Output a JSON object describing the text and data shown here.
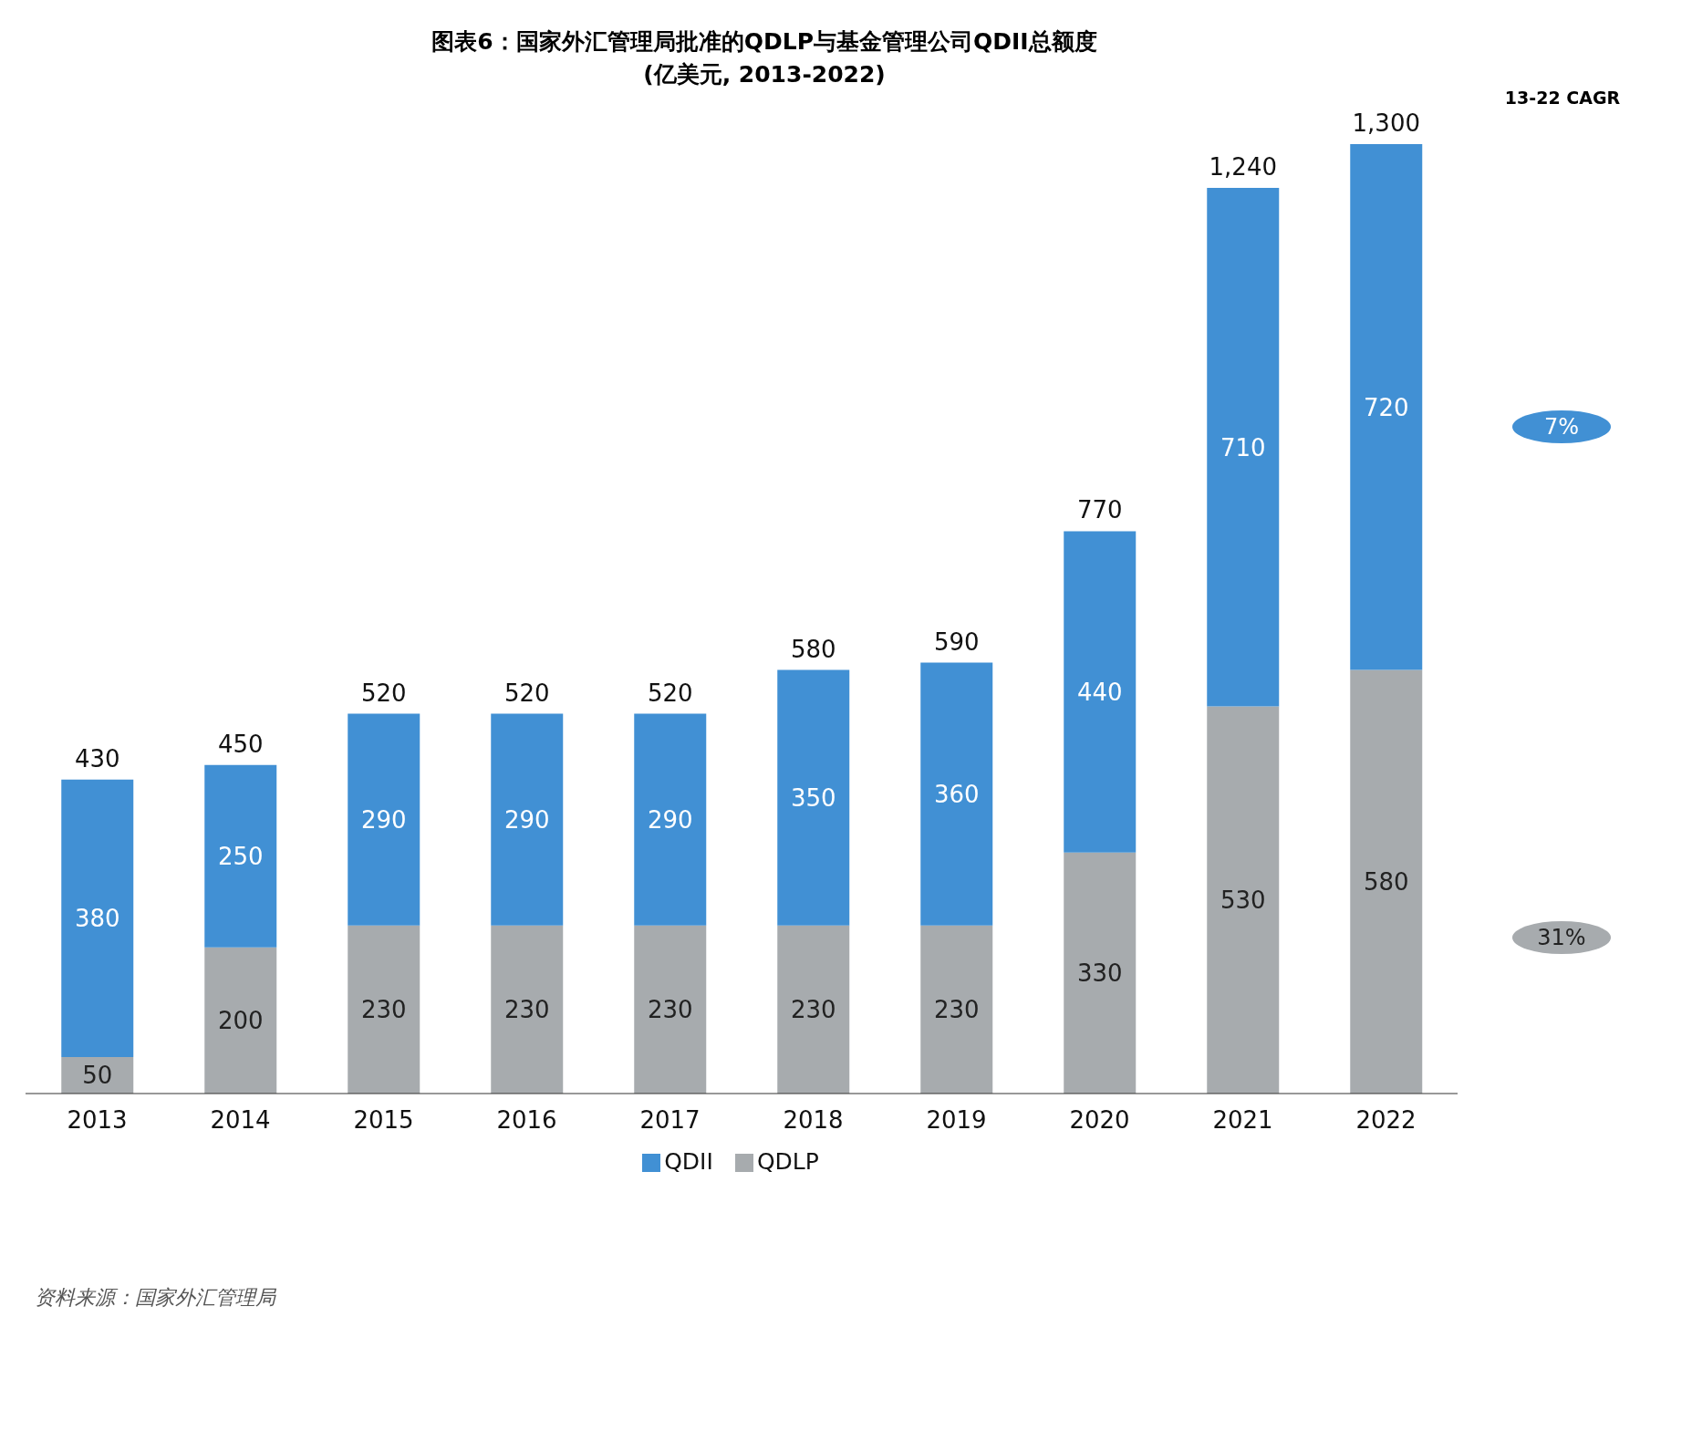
{
  "chart_data": {
    "type": "bar",
    "title": "图表6：国家外汇管理局批准的QDLP与基金管理公司QDII总额度",
    "subtitle": "(亿美元, 2013-2022)",
    "categories": [
      "2013",
      "2014",
      "2015",
      "2016",
      "2017",
      "2018",
      "2019",
      "2020",
      "2021",
      "2022"
    ],
    "stacked": true,
    "series": [
      {
        "name": "QDLP",
        "color": "#a7abae",
        "values": [
          50,
          200,
          230,
          230,
          230,
          230,
          230,
          330,
          530,
          580
        ]
      },
      {
        "name": "QDII",
        "color": "#4190d4",
        "values": [
          380,
          250,
          290,
          290,
          290,
          350,
          360,
          440,
          710,
          720
        ]
      }
    ],
    "totals": [
      "430",
      "450",
      "520",
      "520",
      "520",
      "580",
      "590",
      "770",
      "1,240",
      "1,300"
    ],
    "data_labels": true,
    "legend": "bottom",
    "grid": false,
    "annotations": [
      "13-22 CAGR",
      "7%",
      "31%",
      "资料来源：国家外汇管理局"
    ]
  }
}
